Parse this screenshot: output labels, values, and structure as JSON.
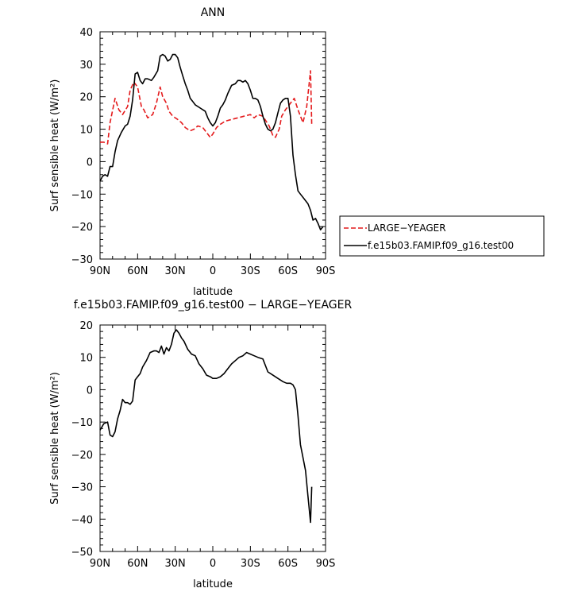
{
  "chart_data": [
    {
      "type": "line",
      "title": "ANN",
      "xlabel": "latitude",
      "ylabel": "Surf sensible heat (W/m²)",
      "xlim": [
        90,
        -90
      ],
      "ylim": [
        -30,
        40
      ],
      "xticks": [
        90,
        60,
        30,
        0,
        -30,
        -60,
        -90
      ],
      "xtick_labels": [
        "90N",
        "60N",
        "30N",
        "0",
        "30S",
        "60S",
        "90S"
      ],
      "yticks": [
        -30,
        -20,
        -10,
        0,
        10,
        20,
        30,
        40
      ],
      "ytick_labels": [
        "−30",
        "−20",
        "−10",
        "0",
        "10",
        "20",
        "30",
        "40"
      ],
      "legend": "outside-right",
      "series": [
        {
          "name": "LARGE−YEAGER",
          "color": "#e41a1c",
          "dash": "dashed",
          "x": [
            90,
            87,
            84,
            82,
            78,
            75,
            72,
            68,
            66,
            63,
            60,
            57,
            55,
            52,
            48,
            45,
            42,
            40,
            37,
            35,
            32,
            28,
            25,
            22,
            18,
            15,
            12,
            8,
            5,
            2,
            0,
            -3,
            -6,
            -10,
            -15,
            -20,
            -25,
            -30,
            -33,
            -36,
            -40,
            -45,
            -48,
            -50,
            -53,
            -55,
            -58,
            -62,
            -65,
            -68,
            -70,
            -72,
            -75,
            -78,
            -79
          ],
          "y": [
            6,
            6,
            5.5,
            12,
            19.5,
            16,
            14.5,
            17,
            22,
            24.5,
            23,
            17,
            16,
            13.5,
            14.5,
            18,
            23,
            20,
            18,
            15.5,
            14,
            13,
            12,
            10.5,
            9.5,
            10,
            11,
            10.5,
            9,
            7.5,
            8.5,
            10.5,
            11.5,
            12.5,
            13,
            13.5,
            14,
            14.5,
            13.5,
            14.5,
            14,
            11,
            8,
            7.5,
            10,
            14,
            16,
            18,
            19.5,
            16,
            14,
            12,
            17,
            28,
            11.5
          ]
        },
        {
          "name": "f.e15b03.FAMIP.f09_g16.test00",
          "color": "#000000",
          "dash": "solid",
          "x": [
            90,
            88,
            86,
            84,
            82,
            80,
            78,
            76,
            73,
            70,
            68,
            66,
            64,
            62,
            60,
            58,
            56,
            54,
            52,
            49,
            47,
            44,
            42,
            40,
            38,
            36,
            34,
            32,
            30,
            28,
            26,
            24,
            22,
            20,
            18,
            16,
            14,
            12,
            10,
            8,
            6,
            4,
            2,
            0,
            -2,
            -4,
            -6,
            -8,
            -10,
            -12,
            -15,
            -18,
            -20,
            -22,
            -24,
            -26,
            -28,
            -30,
            -32,
            -34,
            -36,
            -38,
            -40,
            -42,
            -44,
            -46,
            -48,
            -50,
            -52,
            -54,
            -56,
            -58,
            -60,
            -62,
            -64,
            -66,
            -68,
            -70,
            -72,
            -74,
            -76,
            -78,
            -80,
            -82,
            -84,
            -86,
            -88
          ],
          "y": [
            -6,
            -4.5,
            -4,
            -4.5,
            -1.5,
            -1.5,
            3,
            6.5,
            9,
            11,
            11.5,
            14,
            19,
            27,
            27.5,
            25,
            24,
            25.5,
            25.5,
            25,
            26,
            28,
            32.5,
            33,
            32.5,
            31,
            31.5,
            33,
            33,
            32,
            29,
            26.5,
            24,
            22,
            19.5,
            18.5,
            17.5,
            17,
            16.5,
            16,
            15.5,
            13.5,
            12,
            11,
            12,
            14,
            16.5,
            17.5,
            19,
            21,
            23.5,
            24,
            25,
            25,
            24.5,
            25,
            24,
            22,
            19.5,
            19.5,
            19,
            17,
            14,
            11.5,
            10,
            9.5,
            10,
            12,
            15,
            18,
            19,
            19.5,
            19.5,
            14,
            2,
            -4,
            -9,
            -10,
            -11,
            -12,
            -13,
            -15,
            -18,
            -17.5,
            -19,
            -21,
            -20
          ]
        }
      ]
    },
    {
      "type": "line",
      "title": "f.e15b03.FAMIP.f09_g16.test00 − LARGE−YEAGER",
      "xlabel": "latitude",
      "ylabel": "Surf sensible heat (W/m²)",
      "xlim": [
        90,
        -90
      ],
      "ylim": [
        -50,
        20
      ],
      "xticks": [
        90,
        60,
        30,
        0,
        -30,
        -60,
        -90
      ],
      "xtick_labels": [
        "90N",
        "60N",
        "30N",
        "0",
        "30S",
        "60S",
        "90S"
      ],
      "yticks": [
        -50,
        -40,
        -30,
        -20,
        -10,
        0,
        10,
        20
      ],
      "ytick_labels": [
        "−50",
        "−40",
        "−30",
        "−20",
        "−10",
        "0",
        "10",
        "20"
      ],
      "series": [
        {
          "color": "#000000",
          "dash": "solid",
          "x": [
            90,
            87,
            84,
            82,
            80,
            78,
            76,
            74,
            72,
            70,
            68,
            66,
            64,
            62,
            60,
            58,
            56,
            53,
            50,
            47,
            45,
            43,
            41,
            39,
            37,
            35,
            33,
            31,
            29,
            27,
            25,
            23,
            20,
            17,
            14,
            11,
            8,
            5,
            2,
            0,
            -3,
            -6,
            -9,
            -12,
            -15,
            -18,
            -21,
            -24,
            -27,
            -30,
            -33,
            -36,
            -40,
            -44,
            -48,
            -52,
            -56,
            -59,
            -62,
            -64,
            -66,
            -68,
            -70,
            -72,
            -74,
            -76,
            -78,
            -79
          ],
          "y": [
            -12.5,
            -10.5,
            -10,
            -14,
            -14.5,
            -13,
            -9,
            -6.5,
            -3,
            -4,
            -4,
            -4.5,
            -3.5,
            3,
            4,
            5,
            7,
            9,
            11.5,
            12,
            12,
            11.5,
            13.5,
            11,
            13,
            12,
            14,
            17.5,
            18.5,
            17.5,
            16,
            15,
            12.5,
            11,
            10.5,
            8,
            6.5,
            4.5,
            4,
            3.5,
            3.5,
            4,
            5,
            6.5,
            8,
            9,
            10,
            10.5,
            11.5,
            11,
            10.5,
            10,
            9.5,
            5.5,
            4.5,
            3.5,
            2.5,
            2,
            2,
            1.5,
            0,
            -8,
            -17,
            -21,
            -25,
            -33,
            -41,
            -30
          ]
        }
      ]
    }
  ]
}
